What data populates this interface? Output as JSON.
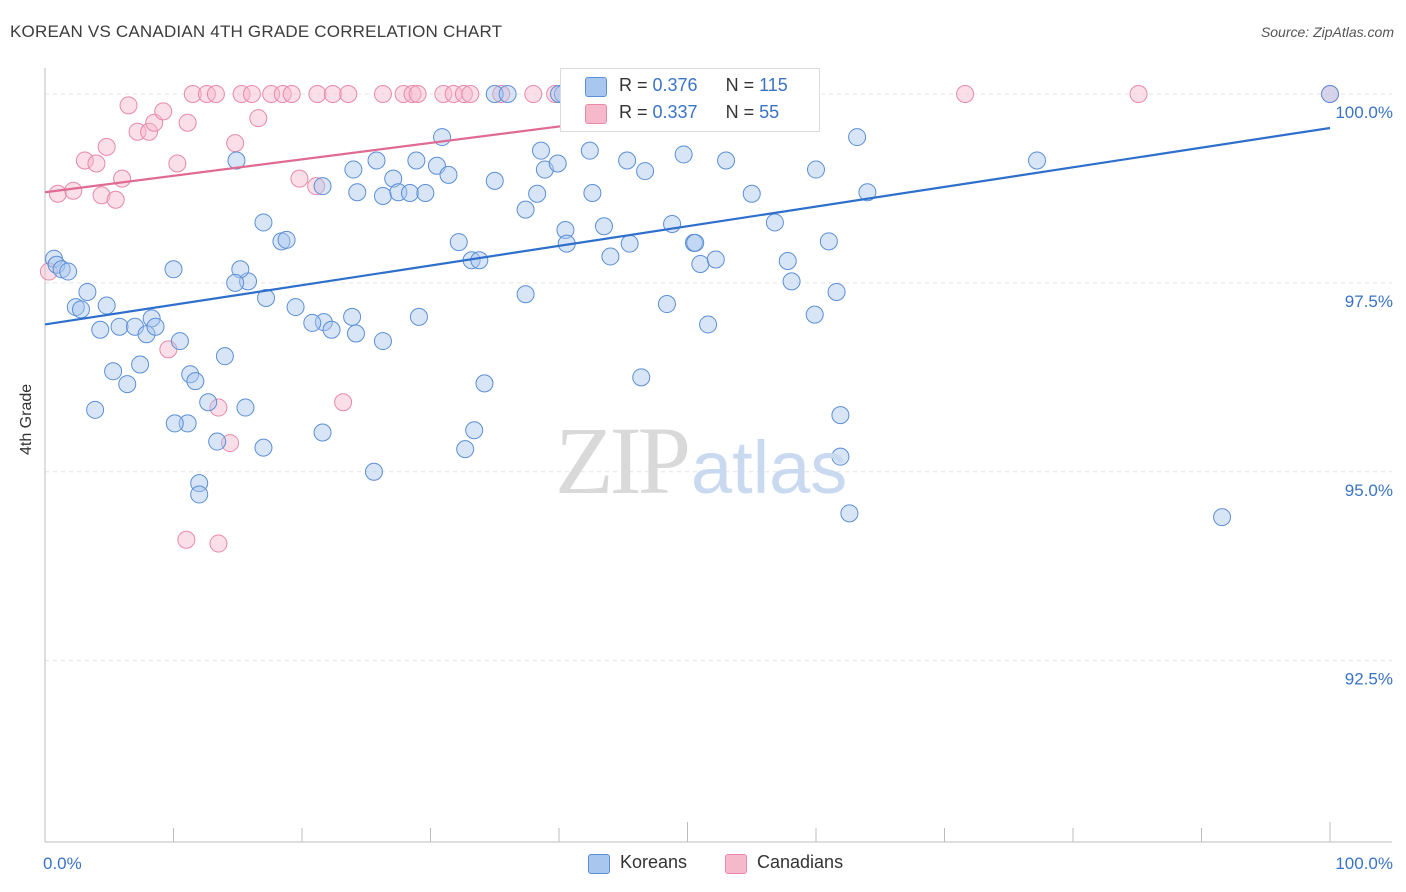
{
  "title": "KOREAN VS CANADIAN 4TH GRADE CORRELATION CHART",
  "source": "Source: ZipAtlas.com",
  "watermark": {
    "zip": "ZIP",
    "atlas": "atlas"
  },
  "legend": {
    "koreans": {
      "r_label": "R = ",
      "r_value": "0.376",
      "n_label": "N = ",
      "n_value": "115"
    },
    "canadians": {
      "r_label": "R = ",
      "r_value": "0.337",
      "n_label": "N = ",
      "n_value": "55"
    }
  },
  "bottom_legend": {
    "koreans": "Koreans",
    "canadians": "Canadians"
  },
  "chart_data": {
    "type": "scatter",
    "title": "KOREAN VS CANADIAN 4TH GRADE CORRELATION CHART",
    "xlabel": "",
    "ylabel": "4th Grade",
    "xlim": [
      0,
      100
    ],
    "ylim": [
      90.1,
      100.45
    ],
    "x_tick_labels": {
      "left": "0.0%",
      "right": "100.0%"
    },
    "y_ticks": [
      {
        "value": 100.0,
        "label": "100.0%"
      },
      {
        "value": 97.5,
        "label": "97.5%"
      },
      {
        "value": 95.0,
        "label": "95.0%"
      },
      {
        "value": 92.5,
        "label": "92.5%"
      }
    ],
    "grid": true,
    "legend_position": "top-center",
    "colors": {
      "koreans_fill": "#a9c6ee",
      "koreans_stroke": "#5b8fd6",
      "koreans_line": "#2e6fcc",
      "canadians_fill": "#f6b8cb",
      "canadians_stroke": "#e889a8",
      "canadians_line": "#e06b92",
      "axis_label": "#3a73c5"
    },
    "series": [
      {
        "name": "Koreans",
        "trend": {
          "x": [
            0,
            100
          ],
          "y": [
            96.95,
            99.55
          ]
        },
        "points": [
          [
            0.7,
            97.82
          ],
          [
            0.9,
            97.74
          ],
          [
            1.3,
            97.68
          ],
          [
            1.8,
            97.65
          ],
          [
            3.3,
            97.38
          ],
          [
            2.4,
            97.18
          ],
          [
            2.8,
            97.15
          ],
          [
            4.8,
            97.2
          ],
          [
            4.3,
            96.88
          ],
          [
            5.8,
            96.92
          ],
          [
            7,
            96.92
          ],
          [
            8.3,
            97.03
          ],
          [
            7.9,
            96.82
          ],
          [
            8.6,
            96.92
          ],
          [
            10.5,
            96.73
          ],
          [
            5.3,
            96.33
          ],
          [
            6.4,
            96.16
          ],
          [
            7.4,
            96.42
          ],
          [
            11.3,
            96.29
          ],
          [
            11.1,
            95.64
          ],
          [
            10.1,
            95.64
          ],
          [
            3.9,
            95.82
          ],
          [
            12.7,
            95.92
          ],
          [
            13.4,
            95.4
          ],
          [
            14,
            96.53
          ],
          [
            11.7,
            96.2
          ],
          [
            12,
            94.85
          ],
          [
            12,
            94.7
          ],
          [
            15.6,
            95.85
          ],
          [
            17,
            95.32
          ],
          [
            21.6,
            95.52
          ],
          [
            18.4,
            98.05
          ],
          [
            17,
            98.3
          ],
          [
            15.8,
            97.52
          ],
          [
            15.2,
            97.68
          ],
          [
            17.2,
            97.3
          ],
          [
            19.5,
            97.18
          ],
          [
            21.7,
            96.98
          ],
          [
            20.8,
            96.97
          ],
          [
            22.3,
            96.88
          ],
          [
            23.9,
            97.05
          ],
          [
            24.2,
            96.83
          ],
          [
            26.3,
            96.73
          ],
          [
            25.6,
            95.0
          ],
          [
            29.1,
            97.05
          ],
          [
            10.0,
            97.68
          ],
          [
            14.8,
            97.5
          ],
          [
            18.8,
            98.07
          ],
          [
            14.9,
            99.12
          ],
          [
            21.6,
            98.78
          ],
          [
            24.0,
            99.0
          ],
          [
            24.3,
            98.7
          ],
          [
            25.8,
            99.12
          ],
          [
            26.3,
            98.65
          ],
          [
            27.1,
            98.88
          ],
          [
            27.5,
            98.7
          ],
          [
            28.4,
            98.69
          ],
          [
            28.9,
            99.12
          ],
          [
            29.6,
            98.69
          ],
          [
            30.5,
            99.05
          ],
          [
            31.4,
            98.93
          ],
          [
            32.2,
            98.04
          ],
          [
            30.9,
            99.43
          ],
          [
            32.7,
            95.3
          ],
          [
            33.2,
            97.8
          ],
          [
            33.4,
            95.55
          ],
          [
            34.2,
            96.17
          ],
          [
            33.8,
            97.8
          ],
          [
            35.0,
            98.85
          ],
          [
            35.0,
            100.0
          ],
          [
            36.0,
            100.0
          ],
          [
            37.4,
            98.47
          ],
          [
            37.4,
            97.35
          ],
          [
            38.3,
            98.68
          ],
          [
            38.6,
            99.25
          ],
          [
            38.9,
            99.0
          ],
          [
            39.9,
            99.08
          ],
          [
            40.5,
            98.2
          ],
          [
            40.6,
            98.02
          ],
          [
            40.3,
            100.0
          ],
          [
            40.0,
            100.0
          ],
          [
            41.7,
            100.0
          ],
          [
            42.4,
            99.25
          ],
          [
            42.6,
            98.69
          ],
          [
            43.5,
            98.25
          ],
          [
            44.0,
            97.85
          ],
          [
            45.5,
            98.02
          ],
          [
            45.3,
            99.12
          ],
          [
            46.4,
            96.25
          ],
          [
            46.7,
            98.98
          ],
          [
            48.4,
            97.22
          ],
          [
            48.8,
            98.28
          ],
          [
            49.7,
            99.2
          ],
          [
            50.5,
            98.03
          ],
          [
            50.6,
            98.03
          ],
          [
            51.0,
            97.75
          ],
          [
            51.6,
            96.95
          ],
          [
            52.2,
            97.81
          ],
          [
            53.0,
            99.12
          ],
          [
            55.0,
            98.68
          ],
          [
            56.8,
            98.3
          ],
          [
            57.8,
            97.79
          ],
          [
            58.1,
            97.52
          ],
          [
            59.9,
            97.08
          ],
          [
            60.0,
            99.0
          ],
          [
            61.0,
            98.05
          ],
          [
            61.9,
            95.2
          ],
          [
            61.6,
            97.38
          ],
          [
            61.9,
            95.75
          ],
          [
            62.6,
            94.45
          ],
          [
            63.2,
            99.43
          ],
          [
            64.0,
            98.7
          ],
          [
            77.2,
            99.12
          ],
          [
            91.6,
            94.4
          ],
          [
            100.0,
            100.0
          ]
        ]
      },
      {
        "name": "Canadians",
        "trend": {
          "x": [
            0,
            58.4
          ],
          "y": [
            98.7,
            99.97
          ]
        },
        "points": [
          [
            0.3,
            97.65
          ],
          [
            1.0,
            98.68
          ],
          [
            2.2,
            98.72
          ],
          [
            3.1,
            99.12
          ],
          [
            4.0,
            99.08
          ],
          [
            4.4,
            98.66
          ],
          [
            4.8,
            99.3
          ],
          [
            5.5,
            98.6
          ],
          [
            6.0,
            98.88
          ],
          [
            6.5,
            99.85
          ],
          [
            7.2,
            99.5
          ],
          [
            8.1,
            99.5
          ],
          [
            8.5,
            99.62
          ],
          [
            9.2,
            99.77
          ],
          [
            9.6,
            96.62
          ],
          [
            10.3,
            99.08
          ],
          [
            11.1,
            99.62
          ],
          [
            11.5,
            100.0
          ],
          [
            12.6,
            100.0
          ],
          [
            13.3,
            100.0
          ],
          [
            13.5,
            95.85
          ],
          [
            14.4,
            95.38
          ],
          [
            14.8,
            99.35
          ],
          [
            15.3,
            100.0
          ],
          [
            16.1,
            100.0
          ],
          [
            16.6,
            99.68
          ],
          [
            17.6,
            100.0
          ],
          [
            18.5,
            100.0
          ],
          [
            19.2,
            100.0
          ],
          [
            19.8,
            98.88
          ],
          [
            21.1,
            98.78
          ],
          [
            21.2,
            100.0
          ],
          [
            22.4,
            100.0
          ],
          [
            23.6,
            100.0
          ],
          [
            23.2,
            95.92
          ],
          [
            26.3,
            100.0
          ],
          [
            27.9,
            100.0
          ],
          [
            28.6,
            100.0
          ],
          [
            29.0,
            100.0
          ],
          [
            31.0,
            100.0
          ],
          [
            31.8,
            100.0
          ],
          [
            32.6,
            100.0
          ],
          [
            33.1,
            100.0
          ],
          [
            35.5,
            100.0
          ],
          [
            38.0,
            100.0
          ],
          [
            39.7,
            100.0
          ],
          [
            40.8,
            100.0
          ],
          [
            41.6,
            100.0
          ],
          [
            44.2,
            100.0
          ],
          [
            11.0,
            94.1
          ],
          [
            13.5,
            94.05
          ],
          [
            71.6,
            100.0
          ],
          [
            85.1,
            100.0
          ],
          [
            100.0,
            100.0
          ],
          [
            58.4,
            99.94
          ]
        ]
      }
    ]
  }
}
